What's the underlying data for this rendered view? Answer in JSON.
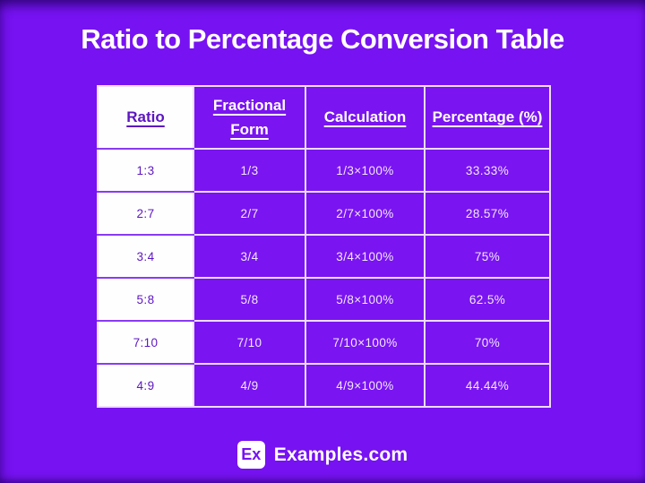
{
  "title": "Ratio to Percentage Conversion Table",
  "colors": {
    "background": "#7712f2",
    "cell_purple": "#7a14f0",
    "grid_line_light": "#eeddfa",
    "grid_line_purple": "#8a3af2",
    "white_cell": "#fffeff",
    "dark_purple_text": "#5c16c0",
    "title_text": "#ffffff"
  },
  "table": {
    "headers": [
      "Ratio",
      "Fractional Form",
      "Calculation",
      "Percentage (%)"
    ],
    "rows": [
      {
        "ratio": "1:3",
        "fraction": "1/3",
        "calculation": "1/3×100%",
        "percentage": "33.33%"
      },
      {
        "ratio": "2:7",
        "fraction": "2/7",
        "calculation": "2/7×100%",
        "percentage": "28.57%"
      },
      {
        "ratio": "3:4",
        "fraction": "3/4",
        "calculation": "3/4×100%",
        "percentage": "75%"
      },
      {
        "ratio": "5:8",
        "fraction": "5/8",
        "calculation": "5/8×100%",
        "percentage": "62.5%"
      },
      {
        "ratio": "7:10",
        "fraction": "7/10",
        "calculation": "7/10×100%",
        "percentage": "70%"
      },
      {
        "ratio": "4:9",
        "fraction": "4/9",
        "calculation": "4/9×100%",
        "percentage": "44.44%"
      }
    ]
  },
  "footer": {
    "logo_text": "Ex",
    "brand_name": "Examples.com"
  },
  "chart_data": {
    "type": "table",
    "title": "Ratio to Percentage Conversion Table",
    "columns": [
      "Ratio",
      "Fractional Form",
      "Calculation",
      "Percentage (%)"
    ],
    "rows": [
      [
        "1:3",
        "1/3",
        "1/3×100%",
        "33.33%"
      ],
      [
        "2:7",
        "2/7",
        "2/7×100%",
        "28.57%"
      ],
      [
        "3:4",
        "3/4",
        "3/4×100%",
        "75%"
      ],
      [
        "5:8",
        "5/8",
        "5/8×100%",
        "62.5%"
      ],
      [
        "7:10",
        "7/10",
        "7/10×100%",
        "70%"
      ],
      [
        "4:9",
        "4/9",
        "4/9×100%",
        "44.44%"
      ]
    ]
  }
}
